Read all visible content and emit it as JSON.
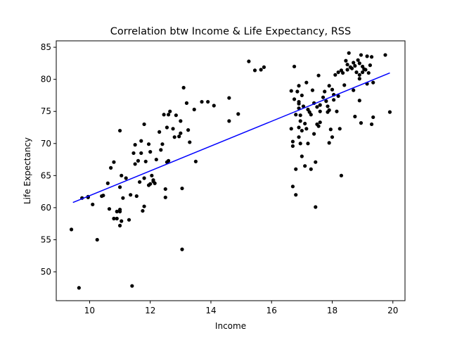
{
  "chart_data": {
    "type": "scatter",
    "title": "Correlation btw Income & Life Expectancy, RSS",
    "xlabel": "Income",
    "ylabel": "Life Expectancy",
    "xlim": [
      8.9,
      20.4
    ],
    "ylim": [
      45.5,
      86.0
    ],
    "xticks": [
      10,
      12,
      14,
      16,
      18,
      20
    ],
    "yticks": [
      50,
      55,
      60,
      65,
      70,
      75,
      80,
      85
    ],
    "grid": false,
    "point_color": "#000000",
    "line_color": "#0000ff",
    "fit_line": {
      "x": [
        9.45,
        19.9
      ],
      "y": [
        60.8,
        81.0
      ]
    },
    "points": [
      [
        9.4,
        56.6
      ],
      [
        9.65,
        47.5
      ],
      [
        9.75,
        61.5
      ],
      [
        9.95,
        61.6
      ],
      [
        9.95,
        61.7
      ],
      [
        10.1,
        60.5
      ],
      [
        10.25,
        55.0
      ],
      [
        10.4,
        61.8
      ],
      [
        10.45,
        61.9
      ],
      [
        10.6,
        63.8
      ],
      [
        10.65,
        59.8
      ],
      [
        10.7,
        66.2
      ],
      [
        10.8,
        67.1
      ],
      [
        10.8,
        58.3
      ],
      [
        10.9,
        58.3
      ],
      [
        10.9,
        59.4
      ],
      [
        11.0,
        59.7
      ],
      [
        11.0,
        59.4
      ],
      [
        11.0,
        57.2
      ],
      [
        11.0,
        63.2
      ],
      [
        11.05,
        65.0
      ],
      [
        11.05,
        57.9
      ],
      [
        11.0,
        72.0
      ],
      [
        11.1,
        61.5
      ],
      [
        11.2,
        64.6
      ],
      [
        11.3,
        58.1
      ],
      [
        11.35,
        62.0
      ],
      [
        11.45,
        68.5
      ],
      [
        11.5,
        69.8
      ],
      [
        11.5,
        66.8
      ],
      [
        11.55,
        61.8
      ],
      [
        11.6,
        67.3
      ],
      [
        11.7,
        70.4
      ],
      [
        11.7,
        68.5
      ],
      [
        11.65,
        64.0
      ],
      [
        11.75,
        59.5
      ],
      [
        11.8,
        60.2
      ],
      [
        11.8,
        64.6
      ],
      [
        11.8,
        73.0
      ],
      [
        11.85,
        67.2
      ],
      [
        11.95,
        63.5
      ],
      [
        11.95,
        69.9
      ],
      [
        12.0,
        63.7
      ],
      [
        12.0,
        68.7
      ],
      [
        12.05,
        65.0
      ],
      [
        12.1,
        64.1
      ],
      [
        12.1,
        64.3
      ],
      [
        12.15,
        63.8
      ],
      [
        12.2,
        67.5
      ],
      [
        12.3,
        71.8
      ],
      [
        12.35,
        69.0
      ],
      [
        12.4,
        69.9
      ],
      [
        12.45,
        74.5
      ],
      [
        12.5,
        62.9
      ],
      [
        12.5,
        61.6
      ],
      [
        12.55,
        67.1
      ],
      [
        12.55,
        72.5
      ],
      [
        12.6,
        67.3
      ],
      [
        12.6,
        74.5
      ],
      [
        12.65,
        75.0
      ],
      [
        12.75,
        72.3
      ],
      [
        12.8,
        71.0
      ],
      [
        12.85,
        74.4
      ],
      [
        12.95,
        71.1
      ],
      [
        13.0,
        71.6
      ],
      [
        13.0,
        73.5
      ],
      [
        13.05,
        63.0
      ],
      [
        13.05,
        53.5
      ],
      [
        13.1,
        78.7
      ],
      [
        13.2,
        76.3
      ],
      [
        13.25,
        72.1
      ],
      [
        13.3,
        70.2
      ],
      [
        13.45,
        75.3
      ],
      [
        13.5,
        67.2
      ],
      [
        13.7,
        76.5
      ],
      [
        13.9,
        76.5
      ],
      [
        14.1,
        75.9
      ],
      [
        14.6,
        77.1
      ],
      [
        14.6,
        73.5
      ],
      [
        14.9,
        74.6
      ],
      [
        15.25,
        82.8
      ],
      [
        15.45,
        81.4
      ],
      [
        15.65,
        81.5
      ],
      [
        15.75,
        81.9
      ],
      [
        11.4,
        47.8
      ],
      [
        16.65,
        78.2
      ],
      [
        16.65,
        72.3
      ],
      [
        16.7,
        70.3
      ],
      [
        16.7,
        69.6
      ],
      [
        16.7,
        63.3
      ],
      [
        16.75,
        76.9
      ],
      [
        16.75,
        82.0
      ],
      [
        16.8,
        74.5
      ],
      [
        16.8,
        66.0
      ],
      [
        16.8,
        62.0
      ],
      [
        16.85,
        78.1
      ],
      [
        16.9,
        79.0
      ],
      [
        16.9,
        76.5
      ],
      [
        16.9,
        76.2
      ],
      [
        16.9,
        75.5
      ],
      [
        16.9,
        72.5
      ],
      [
        16.9,
        71.0
      ],
      [
        16.95,
        74.4
      ],
      [
        16.95,
        73.5
      ],
      [
        17.0,
        72.0
      ],
      [
        17.0,
        68.0
      ],
      [
        16.95,
        70.0
      ],
      [
        17.0,
        77.5
      ],
      [
        17.05,
        75.8
      ],
      [
        17.1,
        66.5
      ],
      [
        17.1,
        73.1
      ],
      [
        17.15,
        79.5
      ],
      [
        17.15,
        72.3
      ],
      [
        17.2,
        70.0
      ],
      [
        17.2,
        75.3
      ],
      [
        17.25,
        74.9
      ],
      [
        17.3,
        66.0
      ],
      [
        17.3,
        74.5
      ],
      [
        17.35,
        78.3
      ],
      [
        17.4,
        76.3
      ],
      [
        17.45,
        60.1
      ],
      [
        17.45,
        67.1
      ],
      [
        17.5,
        75.7
      ],
      [
        17.5,
        73.0
      ],
      [
        17.55,
        72.7
      ],
      [
        17.55,
        80.6
      ],
      [
        17.6,
        75.0
      ],
      [
        17.6,
        73.3
      ],
      [
        17.6,
        76.0
      ],
      [
        17.7,
        77.2
      ],
      [
        17.75,
        78.1
      ],
      [
        17.8,
        76.6
      ],
      [
        17.85,
        75.8
      ],
      [
        17.85,
        74.9
      ],
      [
        17.9,
        75.2
      ],
      [
        17.9,
        70.1
      ],
      [
        17.9,
        79.0
      ],
      [
        17.95,
        72.2
      ],
      [
        18.0,
        78.4
      ],
      [
        18.0,
        71.0
      ],
      [
        18.05,
        77.6
      ],
      [
        18.05,
        76.8
      ],
      [
        18.1,
        80.7
      ],
      [
        18.15,
        75.0
      ],
      [
        18.2,
        81.1
      ],
      [
        18.2,
        77.4
      ],
      [
        18.25,
        72.3
      ],
      [
        18.3,
        81.4
      ],
      [
        18.3,
        65.0
      ],
      [
        18.35,
        81.0
      ],
      [
        18.4,
        79.1
      ],
      [
        18.45,
        82.9
      ],
      [
        18.5,
        82.3
      ],
      [
        18.5,
        81.5
      ],
      [
        18.55,
        84.1
      ],
      [
        18.6,
        81.9
      ],
      [
        18.65,
        81.7
      ],
      [
        18.7,
        78.3
      ],
      [
        18.75,
        74.2
      ],
      [
        18.75,
        82.1
      ],
      [
        18.8,
        81.1
      ],
      [
        18.85,
        83.0
      ],
      [
        18.9,
        82.5
      ],
      [
        18.9,
        80.7
      ],
      [
        18.9,
        80.1
      ],
      [
        18.95,
        73.2
      ],
      [
        18.95,
        83.8
      ],
      [
        19.0,
        82.0
      ],
      [
        19.0,
        81.1
      ],
      [
        19.05,
        81.6
      ],
      [
        18.9,
        76.7
      ],
      [
        19.1,
        81.5
      ],
      [
        19.15,
        83.6
      ],
      [
        19.15,
        79.3
      ],
      [
        19.25,
        82.2
      ],
      [
        19.3,
        83.5
      ],
      [
        19.3,
        73.0
      ],
      [
        19.35,
        79.5
      ],
      [
        19.35,
        74.1
      ],
      [
        19.75,
        83.8
      ],
      [
        19.9,
        74.9
      ],
      [
        19.2,
        81.0
      ],
      [
        18.7,
        82.6
      ],
      [
        17.4,
        71.5
      ]
    ]
  }
}
